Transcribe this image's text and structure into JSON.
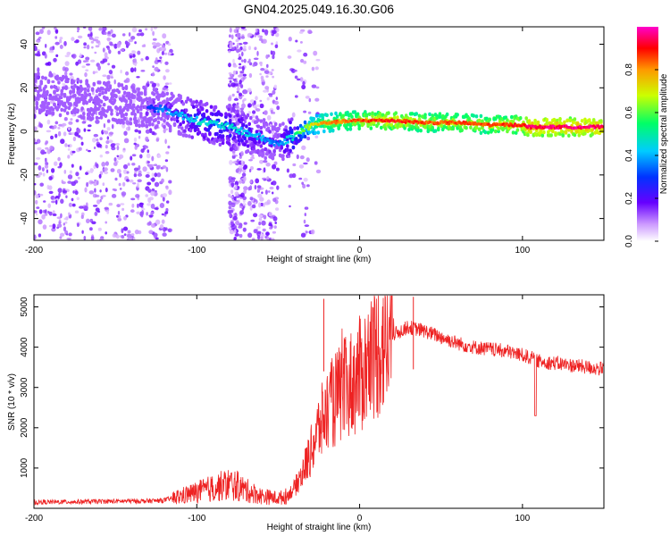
{
  "figure": {
    "title": "GN04.2025.049.16.30.G06"
  },
  "chart_data": [
    {
      "type": "heatmap",
      "xlabel": "Height of straight line (km)",
      "ylabel": "Frequency (Hz)",
      "xlim": [
        -200,
        150
      ],
      "ylim": [
        -50,
        48
      ],
      "xticks": [
        -200,
        -100,
        0,
        100
      ],
      "yticks": [
        -40,
        -20,
        0,
        20,
        40
      ],
      "colorbar": {
        "label": "Normalized spectral amplitude",
        "range": [
          0.0,
          1.0
        ],
        "ticks": [
          "0.0",
          "0.2",
          "0.4",
          "0.6",
          "0.8"
        ],
        "colormap": [
          "#ffffff",
          "#cc99ff",
          "#6600ff",
          "#0033ff",
          "#00ccff",
          "#00ff66",
          "#ccff00",
          "#ff9900",
          "#ff0000",
          "#ff00cc"
        ]
      },
      "ridge": {
        "x": [
          -200,
          -180,
          -160,
          -140,
          -120,
          -100,
          -80,
          -60,
          -50,
          -40,
          -30,
          -20,
          0,
          20,
          40,
          60,
          80,
          100,
          104,
          150
        ],
        "frequency": [
          18,
          16,
          14,
          12,
          10,
          5,
          2,
          -3,
          -6,
          -2,
          3,
          4,
          5,
          5,
          4,
          4,
          3,
          3,
          2,
          2
        ],
        "amplitude": [
          0.2,
          0.2,
          0.22,
          0.25,
          0.35,
          0.45,
          0.45,
          0.4,
          0.35,
          0.5,
          0.7,
          0.8,
          0.85,
          0.9,
          0.85,
          0.85,
          0.85,
          0.9,
          0.95,
          0.95
        ]
      }
    },
    {
      "type": "line",
      "xlabel": "Height of straight line (km)",
      "ylabel": "SNR (10 * v/v)",
      "xlim": [
        -200,
        150
      ],
      "ylim": [
        0,
        5300
      ],
      "xticks": [
        -200,
        -100,
        0,
        100
      ],
      "yticks": [
        1000,
        2000,
        3000,
        4000,
        5000
      ],
      "color": "#ee2222",
      "series": [
        {
          "x": [
            -200,
            -180,
            -160,
            -140,
            -130,
            -120,
            -110,
            -100,
            -90,
            -80,
            -75,
            -70,
            -60,
            -50,
            -45,
            -40,
            -35,
            -30,
            -25,
            -20,
            -15,
            -10,
            -5,
            0,
            5,
            10,
            15,
            20,
            25,
            30,
            35,
            40,
            50,
            60,
            70,
            80,
            90,
            100,
            104,
            108,
            110,
            120,
            130,
            140,
            150
          ],
          "values": [
            150,
            160,
            170,
            180,
            180,
            200,
            300,
            400,
            500,
            600,
            550,
            450,
            300,
            250,
            300,
            500,
            900,
            1400,
            2000,
            2400,
            2700,
            2900,
            3100,
            3300,
            3600,
            3900,
            4100,
            4300,
            4400,
            4500,
            4450,
            4400,
            4250,
            4100,
            4000,
            3950,
            3900,
            3800,
            3750,
            3700,
            3650,
            3600,
            3550,
            3500,
            3450
          ]
        }
      ],
      "annotations": [
        {
          "x": 108,
          "y": 2300,
          "note": "dip"
        },
        {
          "x": -22,
          "y": 5200,
          "note": "spike"
        },
        {
          "x": 33,
          "y": 5250,
          "note": "spike"
        }
      ]
    }
  ]
}
